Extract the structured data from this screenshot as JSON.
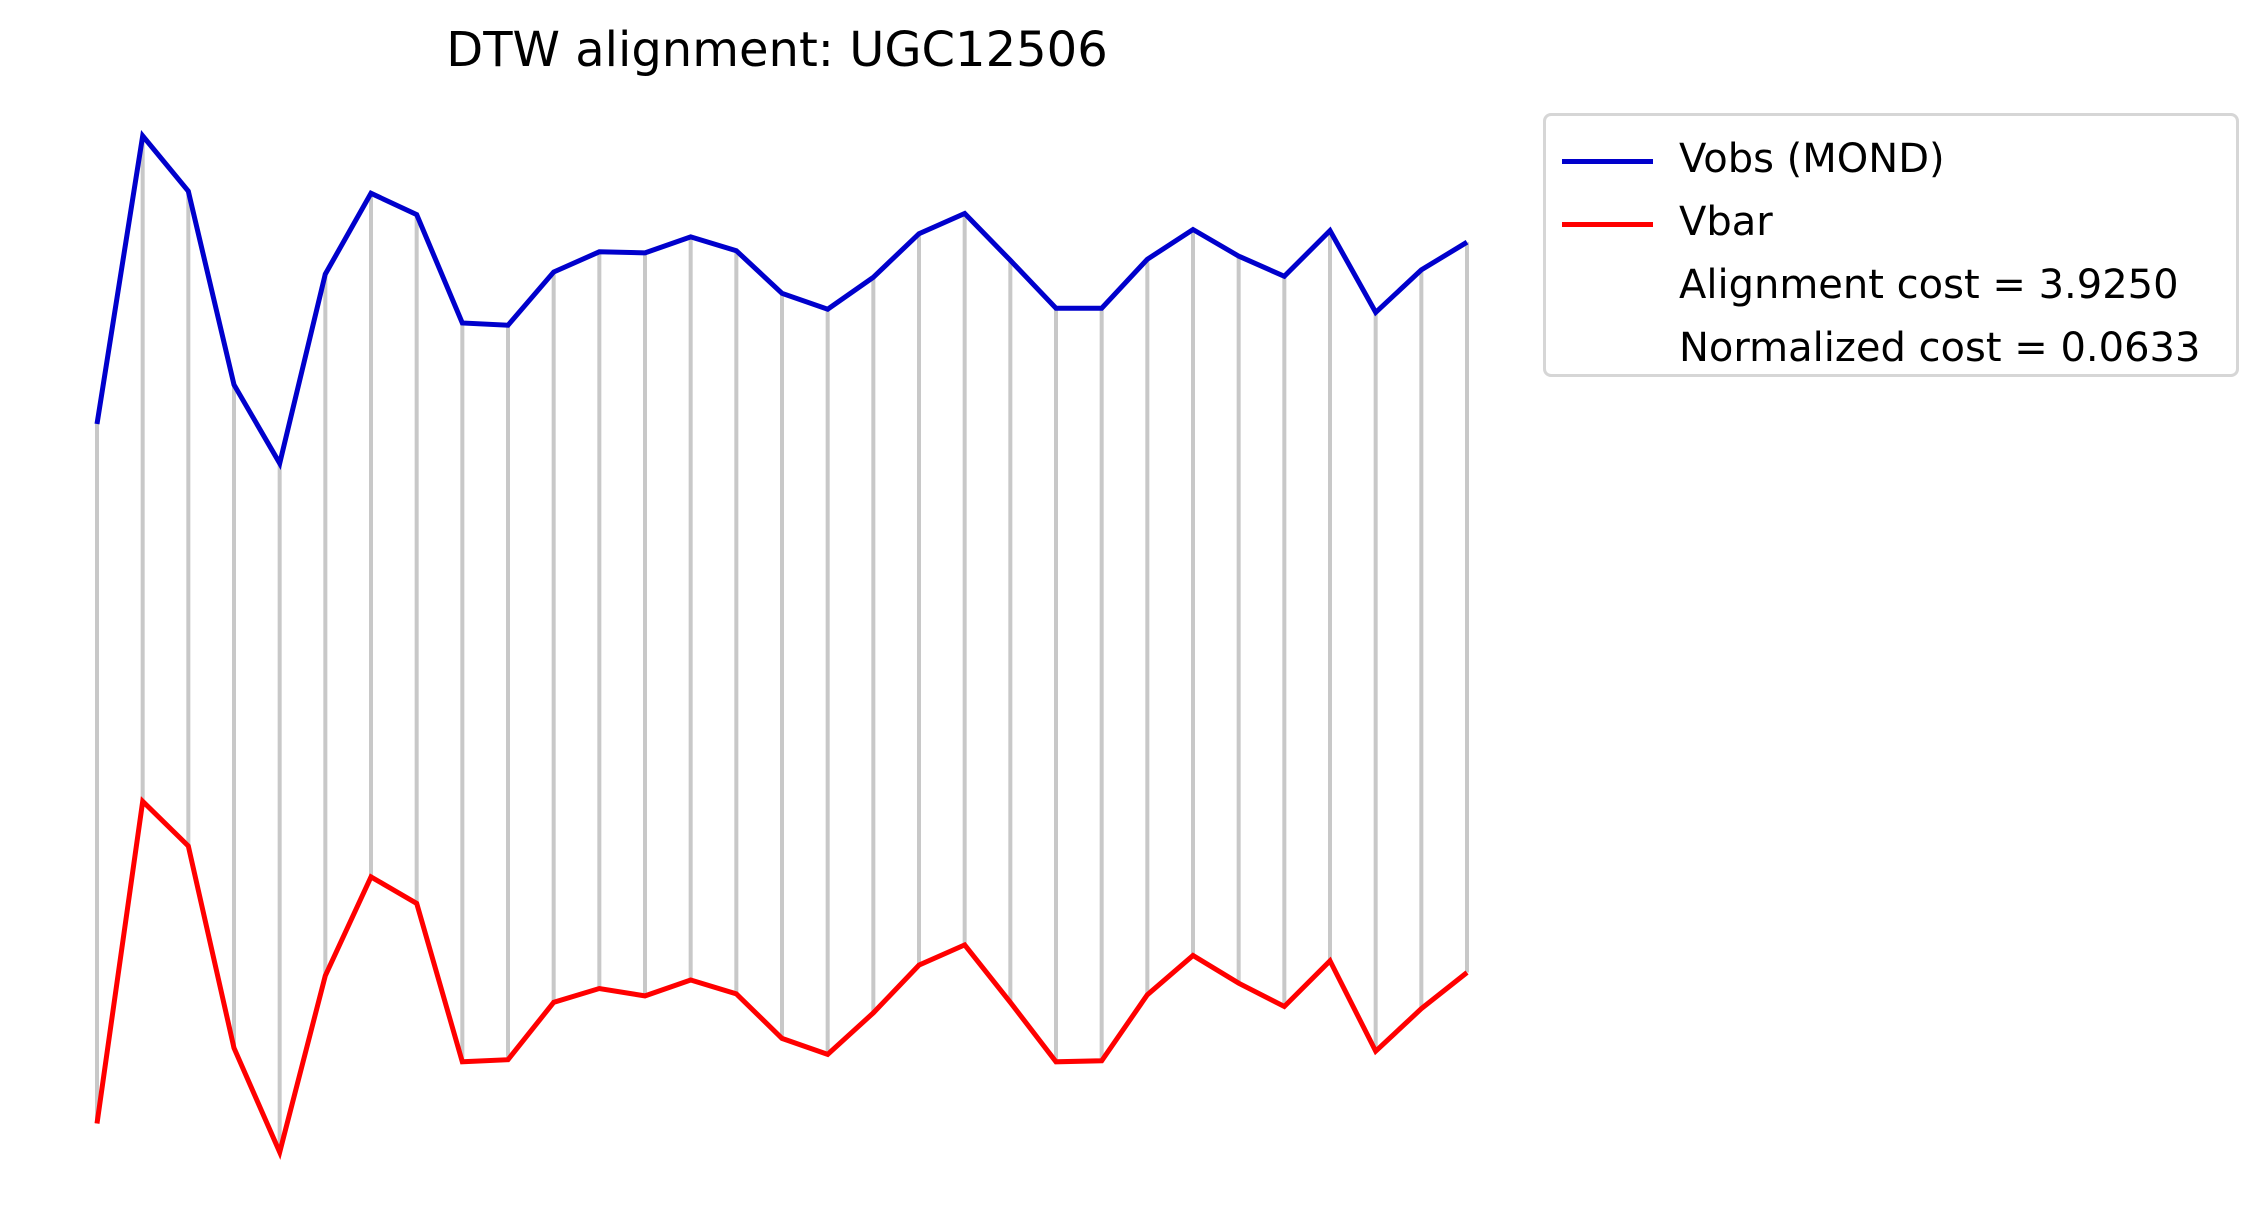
{
  "chart_data": {
    "type": "line",
    "title": "DTW alignment: UGC12506",
    "xlabel": "",
    "ylabel": "",
    "axes_visible": false,
    "grid": false,
    "legend_placement": "outside-top-right",
    "x": [
      0,
      1,
      2,
      3,
      4,
      5,
      6,
      7,
      8,
      9,
      10,
      11,
      12,
      13,
      14,
      15,
      16,
      17,
      18,
      19,
      20,
      21,
      22,
      23,
      24,
      25,
      26,
      27,
      28,
      29,
      30
    ],
    "ylim": [
      0,
      1
    ],
    "series": [
      {
        "name": "Vobs (MOND)",
        "color": "#0000cc",
        "values": [
          0.714,
          0.985,
          0.933,
          0.751,
          0.677,
          0.855,
          0.931,
          0.911,
          0.809,
          0.807,
          0.857,
          0.876,
          0.875,
          0.89,
          0.877,
          0.837,
          0.822,
          0.852,
          0.893,
          0.912,
          0.868,
          0.823,
          0.823,
          0.869,
          0.897,
          0.872,
          0.853,
          0.896,
          0.819,
          0.859,
          0.885
        ]
      },
      {
        "name": "Vbar",
        "color": "#ff0000",
        "values": [
          0.056,
          0.359,
          0.317,
          0.127,
          0.029,
          0.195,
          0.288,
          0.263,
          0.114,
          0.116,
          0.17,
          0.183,
          0.176,
          0.191,
          0.178,
          0.136,
          0.121,
          0.16,
          0.205,
          0.224,
          0.17,
          0.114,
          0.115,
          0.177,
          0.214,
          0.188,
          0.166,
          0.209,
          0.124,
          0.164,
          0.198
        ]
      }
    ],
    "alignment": {
      "color": "#c8c8c8",
      "pairs": [
        [
          0,
          0
        ],
        [
          1,
          1
        ],
        [
          2,
          2
        ],
        [
          3,
          3
        ],
        [
          4,
          4
        ],
        [
          5,
          5
        ],
        [
          6,
          6
        ],
        [
          7,
          7
        ],
        [
          8,
          8
        ],
        [
          9,
          9
        ],
        [
          10,
          10
        ],
        [
          11,
          11
        ],
        [
          12,
          12
        ],
        [
          13,
          13
        ],
        [
          14,
          14
        ],
        [
          15,
          15
        ],
        [
          16,
          16
        ],
        [
          17,
          17
        ],
        [
          18,
          18
        ],
        [
          19,
          19
        ],
        [
          20,
          20
        ],
        [
          21,
          21
        ],
        [
          22,
          22
        ],
        [
          23,
          23
        ],
        [
          24,
          24
        ],
        [
          25,
          25
        ],
        [
          26,
          26
        ],
        [
          27,
          27
        ],
        [
          28,
          28
        ],
        [
          29,
          29
        ],
        [
          30,
          30
        ]
      ]
    },
    "legend": {
      "entries": [
        {
          "label": "Vobs (MOND)",
          "color": "#0000cc",
          "marker": "line"
        },
        {
          "label": "Vbar",
          "color": "#ff0000",
          "marker": "line"
        },
        {
          "label": "Alignment cost = 3.9250",
          "color": "",
          "marker": "none"
        },
        {
          "label": "Normalized cost = 0.0633",
          "color": "",
          "marker": "none"
        }
      ]
    }
  }
}
